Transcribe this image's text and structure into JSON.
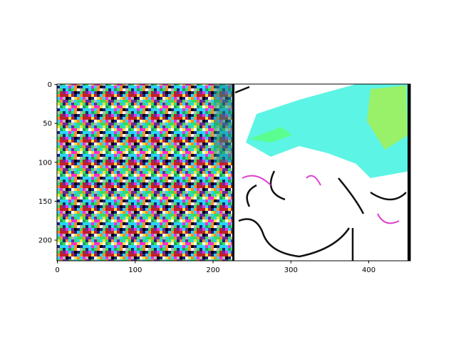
{
  "chart_data": {
    "type": "image",
    "xlim": [
      -0.5,
      453.5
    ],
    "ylim": [
      226.5,
      -0.5
    ],
    "xticks": [
      0,
      100,
      200,
      300,
      400
    ],
    "yticks": [
      0,
      50,
      100,
      150,
      200
    ]
  }
}
